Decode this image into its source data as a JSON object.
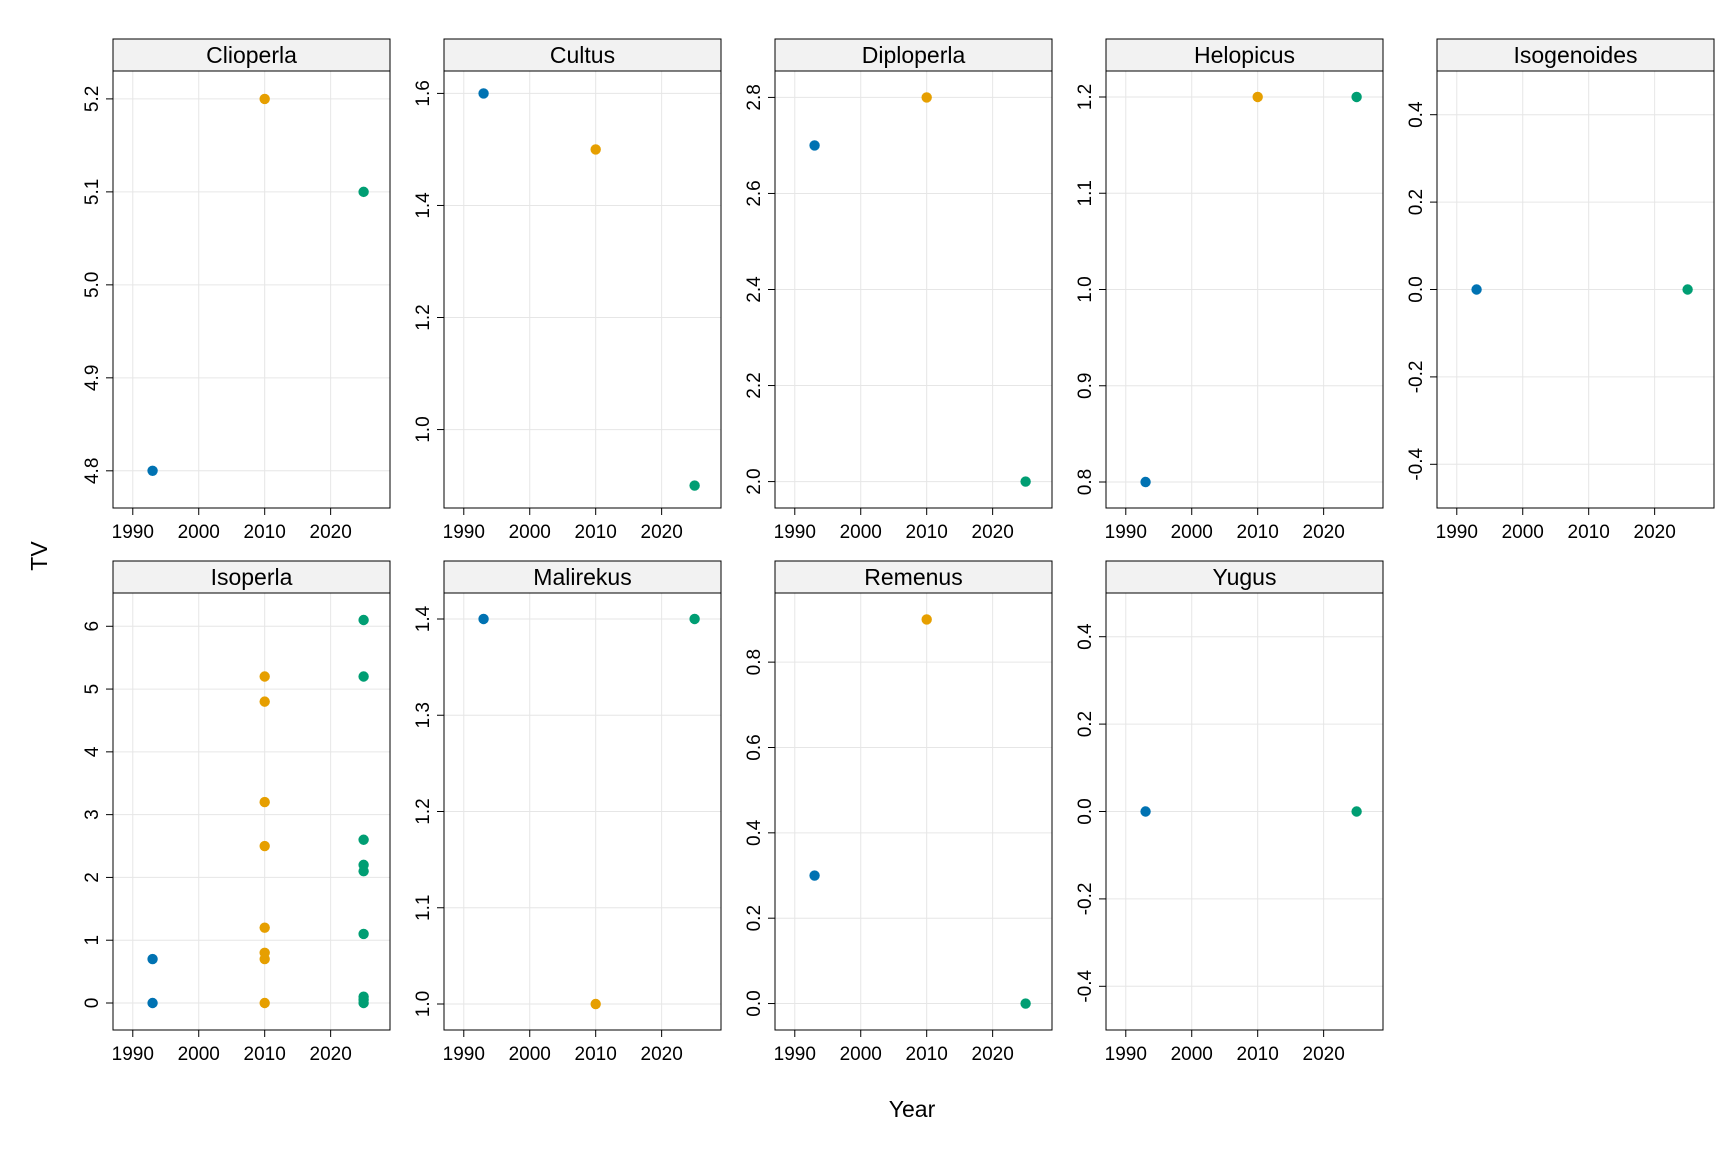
{
  "figure": {
    "xlabel": "Year",
    "ylabel": "TV"
  },
  "colors": {
    "1993": "#0072B2",
    "2010": "#E69F00",
    "2025": "#009E73",
    "grid": "#e6e6e6",
    "strip_bg": "#f2f2f2"
  },
  "chart_data": [
    {
      "type": "scatter",
      "title": "Clioperla",
      "xlim": [
        1987,
        2029
      ],
      "xticks": [
        1990,
        2000,
        2010,
        2020
      ],
      "ylim": [
        4.76,
        5.23
      ],
      "yticks": [
        4.8,
        4.9,
        5.0,
        5.1,
        5.2
      ],
      "yticklabels": [
        "4.8",
        "4.9",
        "5.0",
        "5.1",
        "5.2"
      ],
      "points": [
        {
          "x": 1993,
          "y": 4.8
        },
        {
          "x": 2010,
          "y": 5.2
        },
        {
          "x": 2025,
          "y": 5.1
        }
      ]
    },
    {
      "type": "scatter",
      "title": "Cultus",
      "xlim": [
        1987,
        2029
      ],
      "xticks": [
        1990,
        2000,
        2010,
        2020
      ],
      "ylim": [
        0.86,
        1.64
      ],
      "yticks": [
        1.0,
        1.2,
        1.4,
        1.6
      ],
      "yticklabels": [
        "1.0",
        "1.2",
        "1.4",
        "1.6"
      ],
      "points": [
        {
          "x": 1993,
          "y": 1.6
        },
        {
          "x": 2010,
          "y": 1.5
        },
        {
          "x": 2025,
          "y": 0.9
        }
      ]
    },
    {
      "type": "scatter",
      "title": "Diploperla",
      "xlim": [
        1987,
        2029
      ],
      "xticks": [
        1990,
        2000,
        2010,
        2020
      ],
      "ylim": [
        1.945,
        2.855
      ],
      "yticks": [
        2.0,
        2.2,
        2.4,
        2.6,
        2.8
      ],
      "yticklabels": [
        "2.0",
        "2.2",
        "2.4",
        "2.6",
        "2.8"
      ],
      "points": [
        {
          "x": 1993,
          "y": 2.7
        },
        {
          "x": 2010,
          "y": 2.8
        },
        {
          "x": 2025,
          "y": 2.0
        }
      ]
    },
    {
      "type": "scatter",
      "title": "Helopicus",
      "xlim": [
        1987,
        2029
      ],
      "xticks": [
        1990,
        2000,
        2010,
        2020
      ],
      "ylim": [
        0.773,
        1.227
      ],
      "yticks": [
        0.8,
        0.9,
        1.0,
        1.1,
        1.2
      ],
      "yticklabels": [
        "0.8",
        "0.9",
        "1.0",
        "1.1",
        "1.2"
      ],
      "points": [
        {
          "x": 1993,
          "y": 0.8
        },
        {
          "x": 2010,
          "y": 1.2
        },
        {
          "x": 2025,
          "y": 1.2
        }
      ]
    },
    {
      "type": "scatter",
      "title": "Isogenoides",
      "xlim": [
        1987,
        2029
      ],
      "xticks": [
        1990,
        2000,
        2010,
        2020
      ],
      "ylim": [
        -0.5,
        0.5
      ],
      "yticks": [
        -0.4,
        -0.2,
        0.0,
        0.2,
        0.4
      ],
      "yticklabels": [
        "-0.4",
        "-0.2",
        "0.0",
        "0.2",
        "0.4"
      ],
      "points": [
        {
          "x": 1993,
          "y": 0.0
        },
        {
          "x": 2025,
          "y": 0.0
        }
      ]
    },
    {
      "type": "scatter",
      "title": "Isoperla",
      "xlim": [
        1987,
        2029
      ],
      "xticks": [
        1990,
        2000,
        2010,
        2020
      ],
      "ylim": [
        -0.43,
        6.53
      ],
      "yticks": [
        0,
        1,
        2,
        3,
        4,
        5,
        6
      ],
      "yticklabels": [
        "0",
        "1",
        "2",
        "3",
        "4",
        "5",
        "6"
      ],
      "points": [
        {
          "x": 1993,
          "y": 0.7
        },
        {
          "x": 1993,
          "y": 0.0
        },
        {
          "x": 2010,
          "y": 5.2
        },
        {
          "x": 2010,
          "y": 4.8
        },
        {
          "x": 2010,
          "y": 3.2
        },
        {
          "x": 2010,
          "y": 2.5
        },
        {
          "x": 2010,
          "y": 1.2
        },
        {
          "x": 2010,
          "y": 0.8
        },
        {
          "x": 2010,
          "y": 0.7
        },
        {
          "x": 2010,
          "y": 0.0
        },
        {
          "x": 2025,
          "y": 6.1
        },
        {
          "x": 2025,
          "y": 5.2
        },
        {
          "x": 2025,
          "y": 2.6
        },
        {
          "x": 2025,
          "y": 2.2
        },
        {
          "x": 2025,
          "y": 2.1
        },
        {
          "x": 2025,
          "y": 1.1
        },
        {
          "x": 2025,
          "y": 0.1
        },
        {
          "x": 2025,
          "y": 0.05
        },
        {
          "x": 2025,
          "y": 0.0
        }
      ]
    },
    {
      "type": "scatter",
      "title": "Malirekus",
      "xlim": [
        1987,
        2029
      ],
      "xticks": [
        1990,
        2000,
        2010,
        2020
      ],
      "ylim": [
        0.973,
        1.427
      ],
      "yticks": [
        1.0,
        1.1,
        1.2,
        1.3,
        1.4
      ],
      "yticklabels": [
        "1.0",
        "1.1",
        "1.2",
        "1.3",
        "1.4"
      ],
      "points": [
        {
          "x": 1993,
          "y": 1.4
        },
        {
          "x": 2010,
          "y": 1.0
        },
        {
          "x": 2025,
          "y": 1.4
        }
      ]
    },
    {
      "type": "scatter",
      "title": "Remenus",
      "xlim": [
        1987,
        2029
      ],
      "xticks": [
        1990,
        2000,
        2010,
        2020
      ],
      "ylim": [
        -0.062,
        0.962
      ],
      "yticks": [
        0.0,
        0.2,
        0.4,
        0.6,
        0.8
      ],
      "yticklabels": [
        "0.0",
        "0.2",
        "0.4",
        "0.6",
        "0.8"
      ],
      "points": [
        {
          "x": 1993,
          "y": 0.3
        },
        {
          "x": 2010,
          "y": 0.9
        },
        {
          "x": 2025,
          "y": 0.0
        }
      ]
    },
    {
      "type": "scatter",
      "title": "Yugus",
      "xlim": [
        1987,
        2029
      ],
      "xticks": [
        1990,
        2000,
        2010,
        2020
      ],
      "ylim": [
        -0.5,
        0.5
      ],
      "yticks": [
        -0.4,
        -0.2,
        0.0,
        0.2,
        0.4
      ],
      "yticklabels": [
        "-0.4",
        "-0.2",
        "0.0",
        "0.2",
        "0.4"
      ],
      "points": [
        {
          "x": 1993,
          "y": 0.0
        },
        {
          "x": 2025,
          "y": 0.0
        }
      ]
    }
  ]
}
